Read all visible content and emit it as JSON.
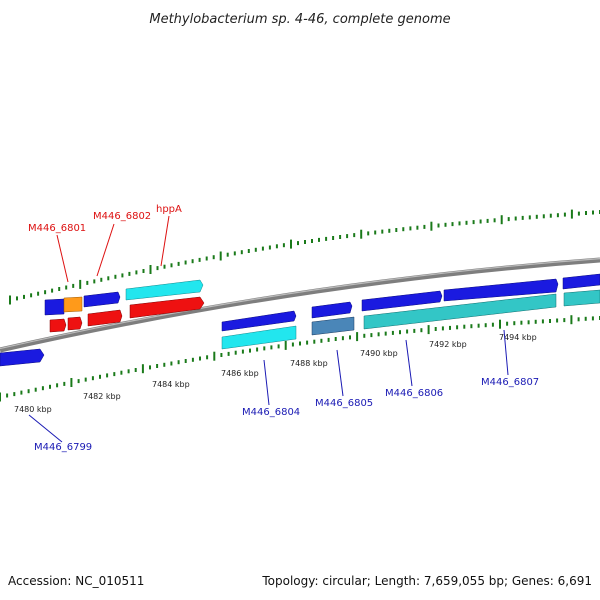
{
  "title": "Methylobacterium sp. 4-46, complete genome",
  "footer": {
    "accession": "Accession: NC_010511",
    "stats": "Topology: circular; Length: 7,659,055 bp; Genes: 6,691"
  },
  "colors": {
    "backbone": "#8a8a8a",
    "tick": "#1a7a1a",
    "blue_gene": "#1a1ae0",
    "red_gene": "#ee1111",
    "orange_gene": "#ff9a1a",
    "cyan_gene": "#22e6ee",
    "teal_gene": "#33c6c6",
    "steel_gene": "#4a86b8",
    "label_blue": "#1a1ab4",
    "label_red": "#dd1111"
  },
  "scale_labels": [
    "7480 kbp",
    "7482 kbp",
    "7484 kbp",
    "7486 kbp",
    "7488 kbp",
    "7490 kbp",
    "7492 kbp",
    "7494 kbp"
  ],
  "gene_labels": [
    "M446_6799",
    "M446_6801",
    "M446_6802",
    "hppA",
    "M446_6804",
    "M446_6805",
    "M446_6806",
    "M446_6807"
  ]
}
